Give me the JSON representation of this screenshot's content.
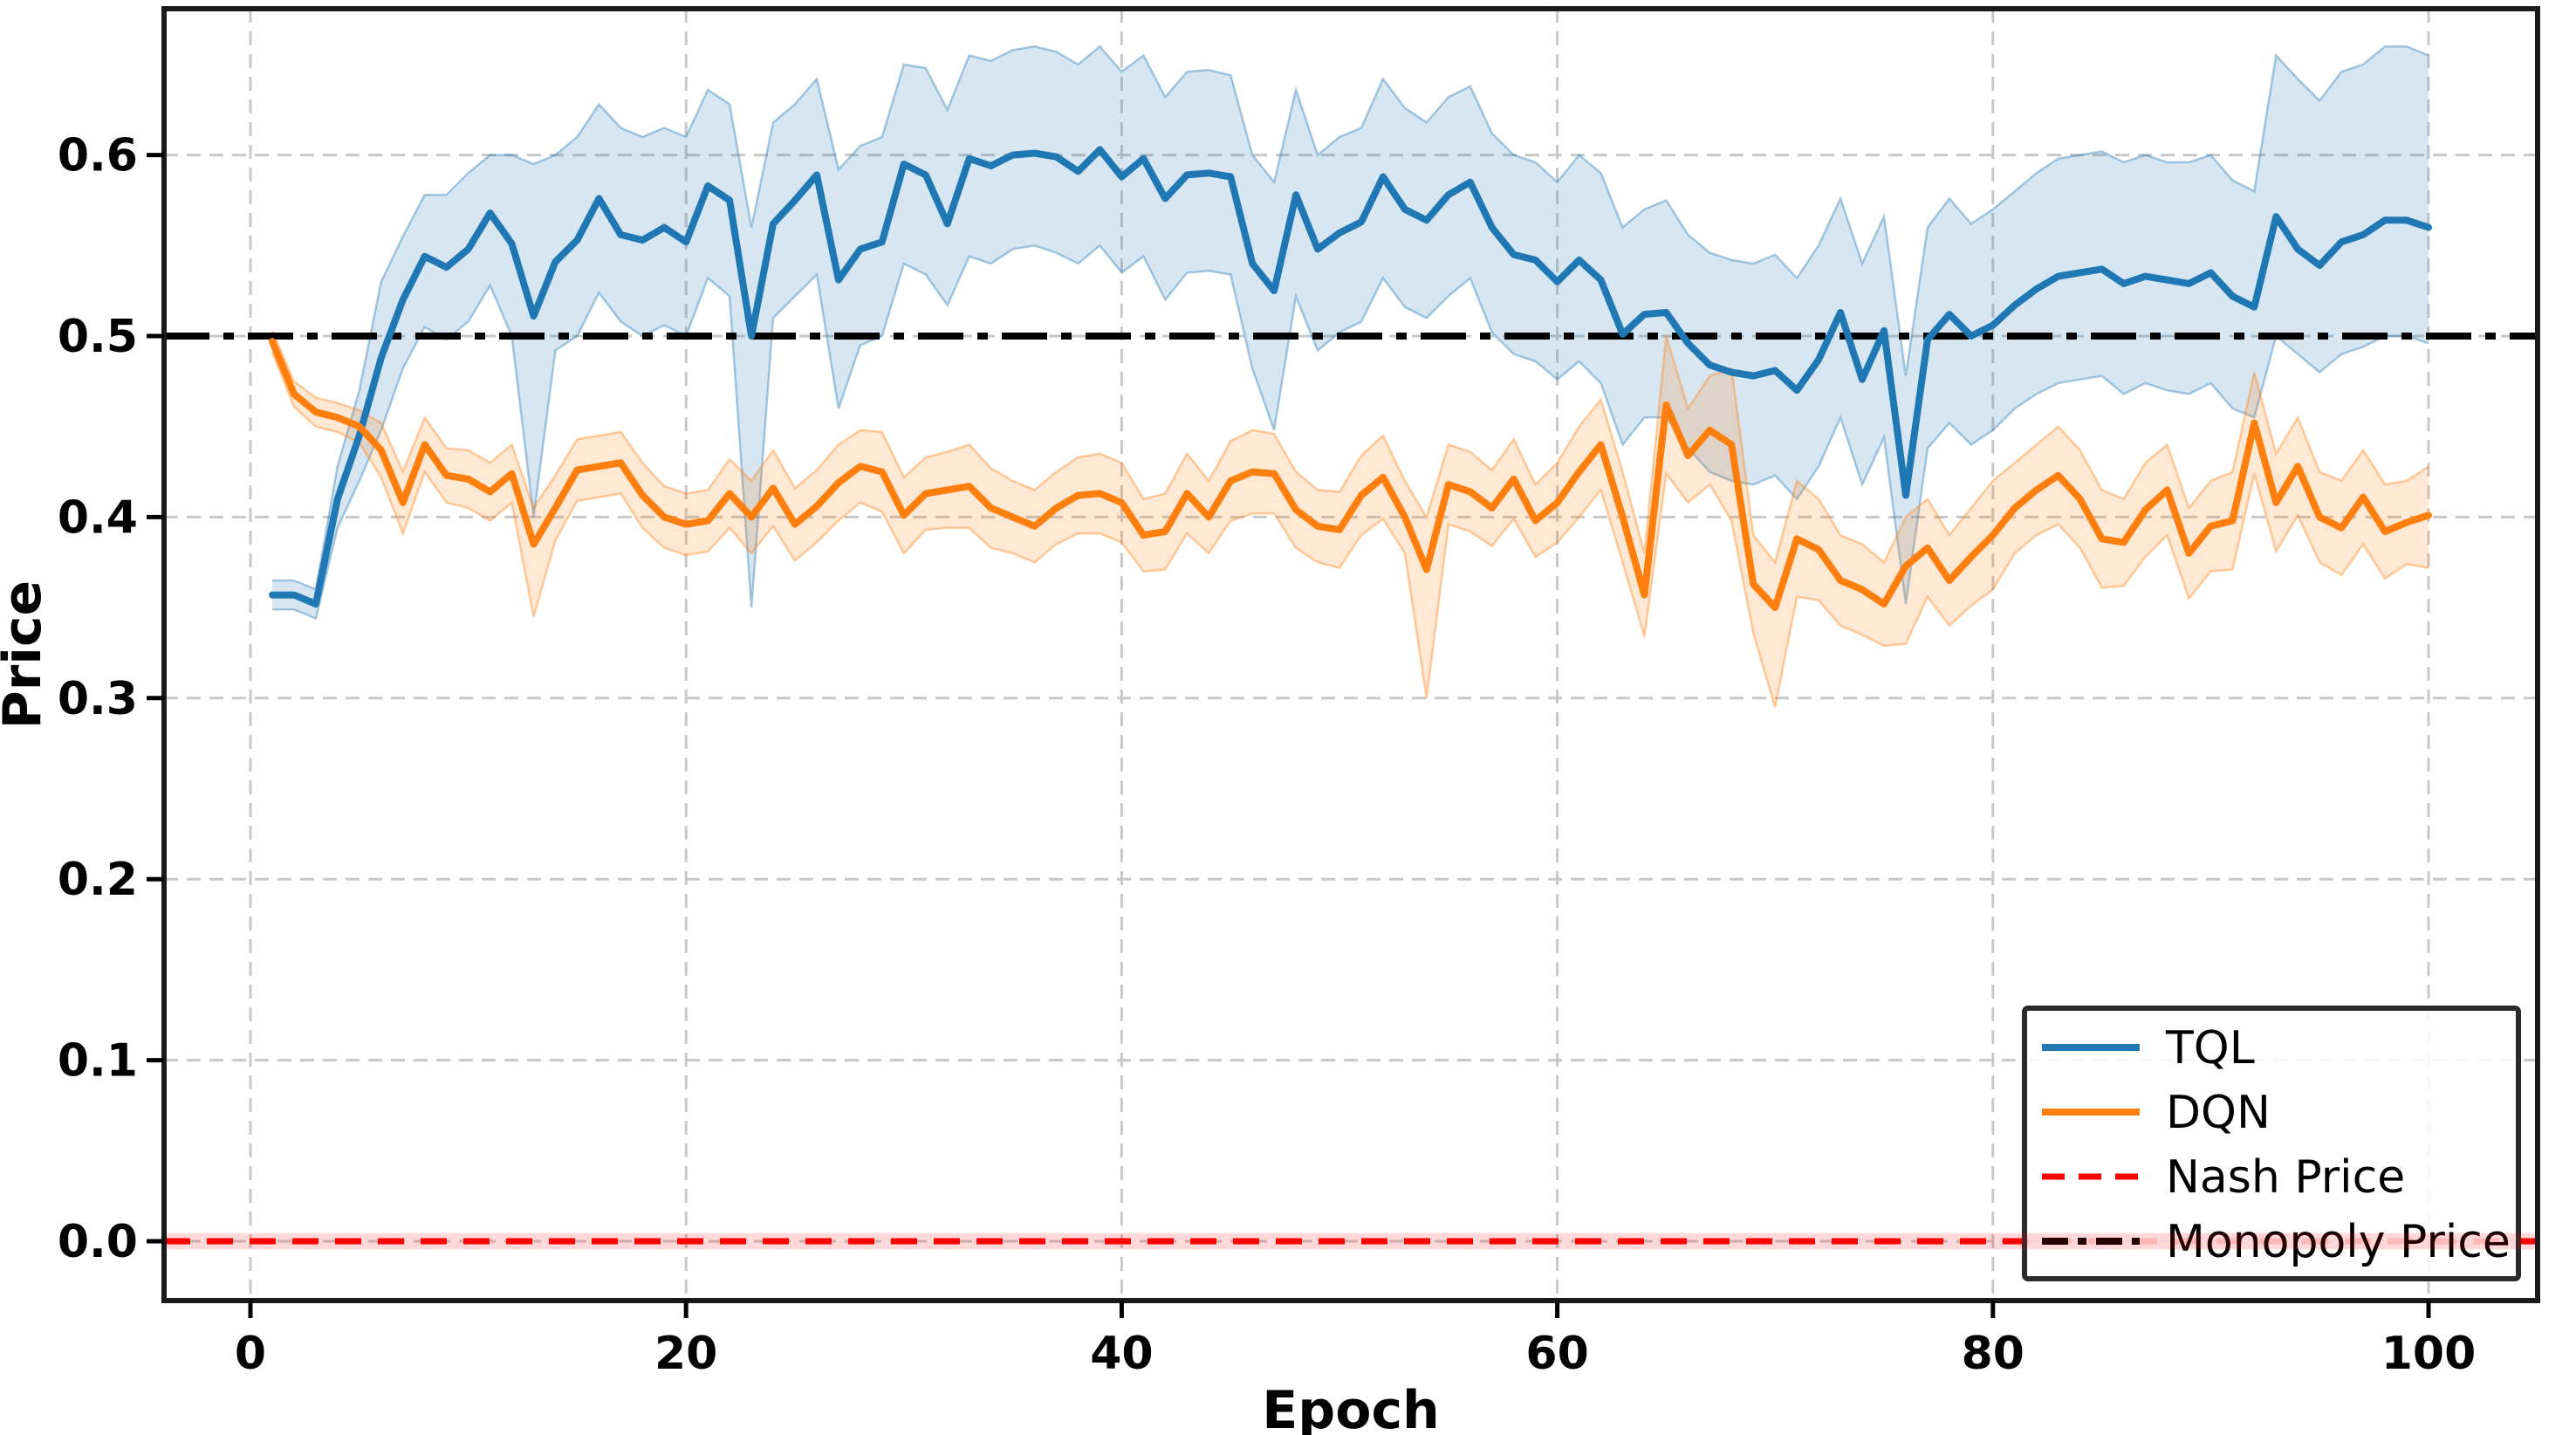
{
  "chart_data": {
    "type": "line",
    "title": "",
    "xlabel": "Epoch",
    "ylabel": "Price",
    "xlim": [
      -4,
      105
    ],
    "ylim": [
      -0.033,
      0.681
    ],
    "grid": true,
    "grid_color": "#c8c8c8",
    "background": "#ffffff",
    "spine_color": "#1a1a1a",
    "legend_position": "lower right",
    "x_ticks": [
      0,
      20,
      40,
      60,
      80,
      100
    ],
    "y_ticks": [
      {
        "label": "0.0",
        "value": 0.0
      },
      {
        "label": "0.1",
        "value": 0.1
      },
      {
        "label": "0.2",
        "value": 0.2
      },
      {
        "label": "0.3",
        "value": 0.3
      },
      {
        "label": "0.4",
        "value": 0.4
      },
      {
        "label": "0.5",
        "value": 0.5
      },
      {
        "label": "0.6",
        "value": 0.6
      }
    ],
    "x_start": 1,
    "x_end": 100,
    "series": [
      {
        "name": "TQL",
        "color": "#1f77b4",
        "band_color": "#1f77b4",
        "band_opacity": 0.18,
        "values": [
          0.357,
          0.357,
          0.352,
          0.41,
          0.445,
          0.488,
          0.52,
          0.544,
          0.538,
          0.548,
          0.568,
          0.551,
          0.511,
          0.541,
          0.553,
          0.576,
          0.556,
          0.553,
          0.56,
          0.552,
          0.583,
          0.575,
          0.5,
          0.562,
          0.575,
          0.589,
          0.531,
          0.548,
          0.552,
          0.595,
          0.589,
          0.562,
          0.598,
          0.594,
          0.6,
          0.601,
          0.599,
          0.591,
          0.603,
          0.588,
          0.598,
          0.576,
          0.589,
          0.59,
          0.588,
          0.54,
          0.525,
          0.578,
          0.548,
          0.557,
          0.563,
          0.588,
          0.57,
          0.564,
          0.578,
          0.585,
          0.56,
          0.545,
          0.542,
          0.53,
          0.542,
          0.531,
          0.501,
          0.512,
          0.513,
          0.496,
          0.484,
          0.48,
          0.478,
          0.481,
          0.47,
          0.487,
          0.513,
          0.476,
          0.503,
          0.412,
          0.498,
          0.512,
          0.5,
          0.506,
          0.517,
          0.526,
          0.533,
          0.535,
          0.537,
          0.529,
          0.533,
          0.531,
          0.529,
          0.535,
          0.522,
          0.516,
          0.566,
          0.548,
          0.539,
          0.552,
          0.556,
          0.564,
          0.564,
          0.56
        ],
        "band_upper": [
          0.365,
          0.365,
          0.36,
          0.428,
          0.47,
          0.53,
          0.555,
          0.578,
          0.578,
          0.59,
          0.6,
          0.6,
          0.595,
          0.6,
          0.61,
          0.628,
          0.615,
          0.61,
          0.615,
          0.61,
          0.636,
          0.628,
          0.56,
          0.618,
          0.628,
          0.642,
          0.592,
          0.605,
          0.61,
          0.65,
          0.648,
          0.625,
          0.655,
          0.652,
          0.658,
          0.66,
          0.657,
          0.65,
          0.66,
          0.646,
          0.655,
          0.632,
          0.646,
          0.647,
          0.644,
          0.6,
          0.585,
          0.636,
          0.6,
          0.61,
          0.615,
          0.642,
          0.626,
          0.618,
          0.632,
          0.638,
          0.612,
          0.6,
          0.596,
          0.585,
          0.6,
          0.59,
          0.56,
          0.57,
          0.575,
          0.556,
          0.546,
          0.542,
          0.54,
          0.545,
          0.532,
          0.55,
          0.576,
          0.54,
          0.566,
          0.478,
          0.56,
          0.576,
          0.562,
          0.57,
          0.58,
          0.59,
          0.598,
          0.6,
          0.602,
          0.596,
          0.6,
          0.596,
          0.596,
          0.6,
          0.586,
          0.58,
          0.655,
          0.642,
          0.63,
          0.646,
          0.65,
          0.66,
          0.66,
          0.655
        ],
        "band_lower": [
          0.349,
          0.349,
          0.344,
          0.394,
          0.42,
          0.448,
          0.482,
          0.505,
          0.498,
          0.508,
          0.528,
          0.5,
          0.4,
          0.492,
          0.5,
          0.524,
          0.508,
          0.5,
          0.506,
          0.5,
          0.532,
          0.522,
          0.35,
          0.51,
          0.522,
          0.534,
          0.46,
          0.495,
          0.5,
          0.54,
          0.534,
          0.517,
          0.544,
          0.54,
          0.548,
          0.55,
          0.546,
          0.54,
          0.55,
          0.535,
          0.544,
          0.52,
          0.535,
          0.536,
          0.534,
          0.482,
          0.448,
          0.522,
          0.492,
          0.502,
          0.508,
          0.532,
          0.516,
          0.51,
          0.522,
          0.532,
          0.502,
          0.49,
          0.486,
          0.476,
          0.486,
          0.474,
          0.44,
          0.455,
          0.455,
          0.438,
          0.425,
          0.42,
          0.418,
          0.423,
          0.41,
          0.428,
          0.455,
          0.418,
          0.444,
          0.352,
          0.438,
          0.452,
          0.44,
          0.448,
          0.46,
          0.468,
          0.474,
          0.476,
          0.478,
          0.468,
          0.474,
          0.47,
          0.468,
          0.474,
          0.46,
          0.455,
          0.5,
          0.49,
          0.48,
          0.49,
          0.494,
          0.5,
          0.5,
          0.496
        ]
      },
      {
        "name": "DQN",
        "color": "#ff7f0e",
        "band_color": "#ff7f0e",
        "band_opacity": 0.18,
        "values": [
          0.497,
          0.468,
          0.458,
          0.455,
          0.45,
          0.437,
          0.408,
          0.44,
          0.423,
          0.421,
          0.414,
          0.424,
          0.385,
          0.405,
          0.426,
          0.428,
          0.43,
          0.412,
          0.4,
          0.396,
          0.398,
          0.413,
          0.4,
          0.416,
          0.396,
          0.406,
          0.419,
          0.428,
          0.425,
          0.401,
          0.413,
          0.415,
          0.417,
          0.405,
          0.4,
          0.395,
          0.405,
          0.412,
          0.413,
          0.408,
          0.39,
          0.392,
          0.413,
          0.4,
          0.42,
          0.425,
          0.424,
          0.404,
          0.395,
          0.393,
          0.412,
          0.422,
          0.4,
          0.371,
          0.418,
          0.414,
          0.405,
          0.421,
          0.398,
          0.408,
          0.425,
          0.44,
          0.4,
          0.357,
          0.462,
          0.434,
          0.448,
          0.44,
          0.363,
          0.35,
          0.388,
          0.382,
          0.365,
          0.36,
          0.352,
          0.373,
          0.383,
          0.365,
          0.378,
          0.39,
          0.405,
          0.415,
          0.423,
          0.41,
          0.388,
          0.386,
          0.404,
          0.415,
          0.38,
          0.395,
          0.398,
          0.452,
          0.408,
          0.428,
          0.4,
          0.394,
          0.411,
          0.392,
          0.397,
          0.401
        ],
        "band_upper": [
          0.503,
          0.475,
          0.466,
          0.463,
          0.459,
          0.452,
          0.425,
          0.455,
          0.438,
          0.437,
          0.43,
          0.44,
          0.405,
          0.423,
          0.443,
          0.445,
          0.447,
          0.43,
          0.417,
          0.413,
          0.415,
          0.432,
          0.42,
          0.437,
          0.416,
          0.426,
          0.44,
          0.448,
          0.447,
          0.422,
          0.433,
          0.436,
          0.44,
          0.427,
          0.42,
          0.415,
          0.425,
          0.433,
          0.435,
          0.43,
          0.41,
          0.413,
          0.435,
          0.42,
          0.442,
          0.448,
          0.446,
          0.425,
          0.415,
          0.414,
          0.434,
          0.445,
          0.42,
          0.4,
          0.44,
          0.436,
          0.426,
          0.443,
          0.418,
          0.43,
          0.45,
          0.465,
          0.425,
          0.38,
          0.5,
          0.46,
          0.478,
          0.482,
          0.39,
          0.375,
          0.42,
          0.41,
          0.39,
          0.385,
          0.375,
          0.4,
          0.41,
          0.39,
          0.405,
          0.42,
          0.43,
          0.44,
          0.45,
          0.437,
          0.415,
          0.41,
          0.43,
          0.44,
          0.405,
          0.42,
          0.425,
          0.48,
          0.435,
          0.455,
          0.425,
          0.42,
          0.437,
          0.418,
          0.42,
          0.428
        ],
        "band_lower": [
          0.491,
          0.461,
          0.45,
          0.447,
          0.441,
          0.422,
          0.391,
          0.425,
          0.408,
          0.405,
          0.398,
          0.408,
          0.345,
          0.387,
          0.409,
          0.411,
          0.413,
          0.394,
          0.383,
          0.379,
          0.381,
          0.394,
          0.38,
          0.395,
          0.376,
          0.386,
          0.398,
          0.408,
          0.403,
          0.38,
          0.393,
          0.394,
          0.394,
          0.383,
          0.38,
          0.375,
          0.385,
          0.391,
          0.391,
          0.386,
          0.37,
          0.371,
          0.391,
          0.38,
          0.398,
          0.402,
          0.402,
          0.383,
          0.375,
          0.372,
          0.39,
          0.399,
          0.38,
          0.3,
          0.396,
          0.392,
          0.384,
          0.399,
          0.378,
          0.386,
          0.4,
          0.415,
          0.375,
          0.334,
          0.424,
          0.408,
          0.418,
          0.398,
          0.336,
          0.295,
          0.356,
          0.354,
          0.34,
          0.335,
          0.329,
          0.33,
          0.356,
          0.34,
          0.351,
          0.36,
          0.38,
          0.39,
          0.396,
          0.383,
          0.361,
          0.362,
          0.378,
          0.39,
          0.355,
          0.37,
          0.371,
          0.424,
          0.381,
          0.401,
          0.375,
          0.368,
          0.385,
          0.366,
          0.374,
          0.372
        ]
      }
    ],
    "reference_lines": [
      {
        "name": "Nash Price",
        "value": 0.0,
        "color": "#ff0000",
        "style": "dashed",
        "band_halfwidth": 0.0045
      },
      {
        "name": "Monopoly Price",
        "value": 0.5,
        "color": "#000000",
        "style": "dashdot",
        "band_halfwidth": 0
      }
    ]
  },
  "legend": {
    "entries": [
      {
        "label": "TQL",
        "color": "#1f77b4",
        "style": "solid"
      },
      {
        "label": "DQN",
        "color": "#ff7f0e",
        "style": "solid"
      },
      {
        "label": "Nash Price",
        "color": "#ff0000",
        "style": "dashed"
      },
      {
        "label": "Monopoly Price",
        "color": "#000000",
        "style": "dashdot"
      }
    ]
  }
}
